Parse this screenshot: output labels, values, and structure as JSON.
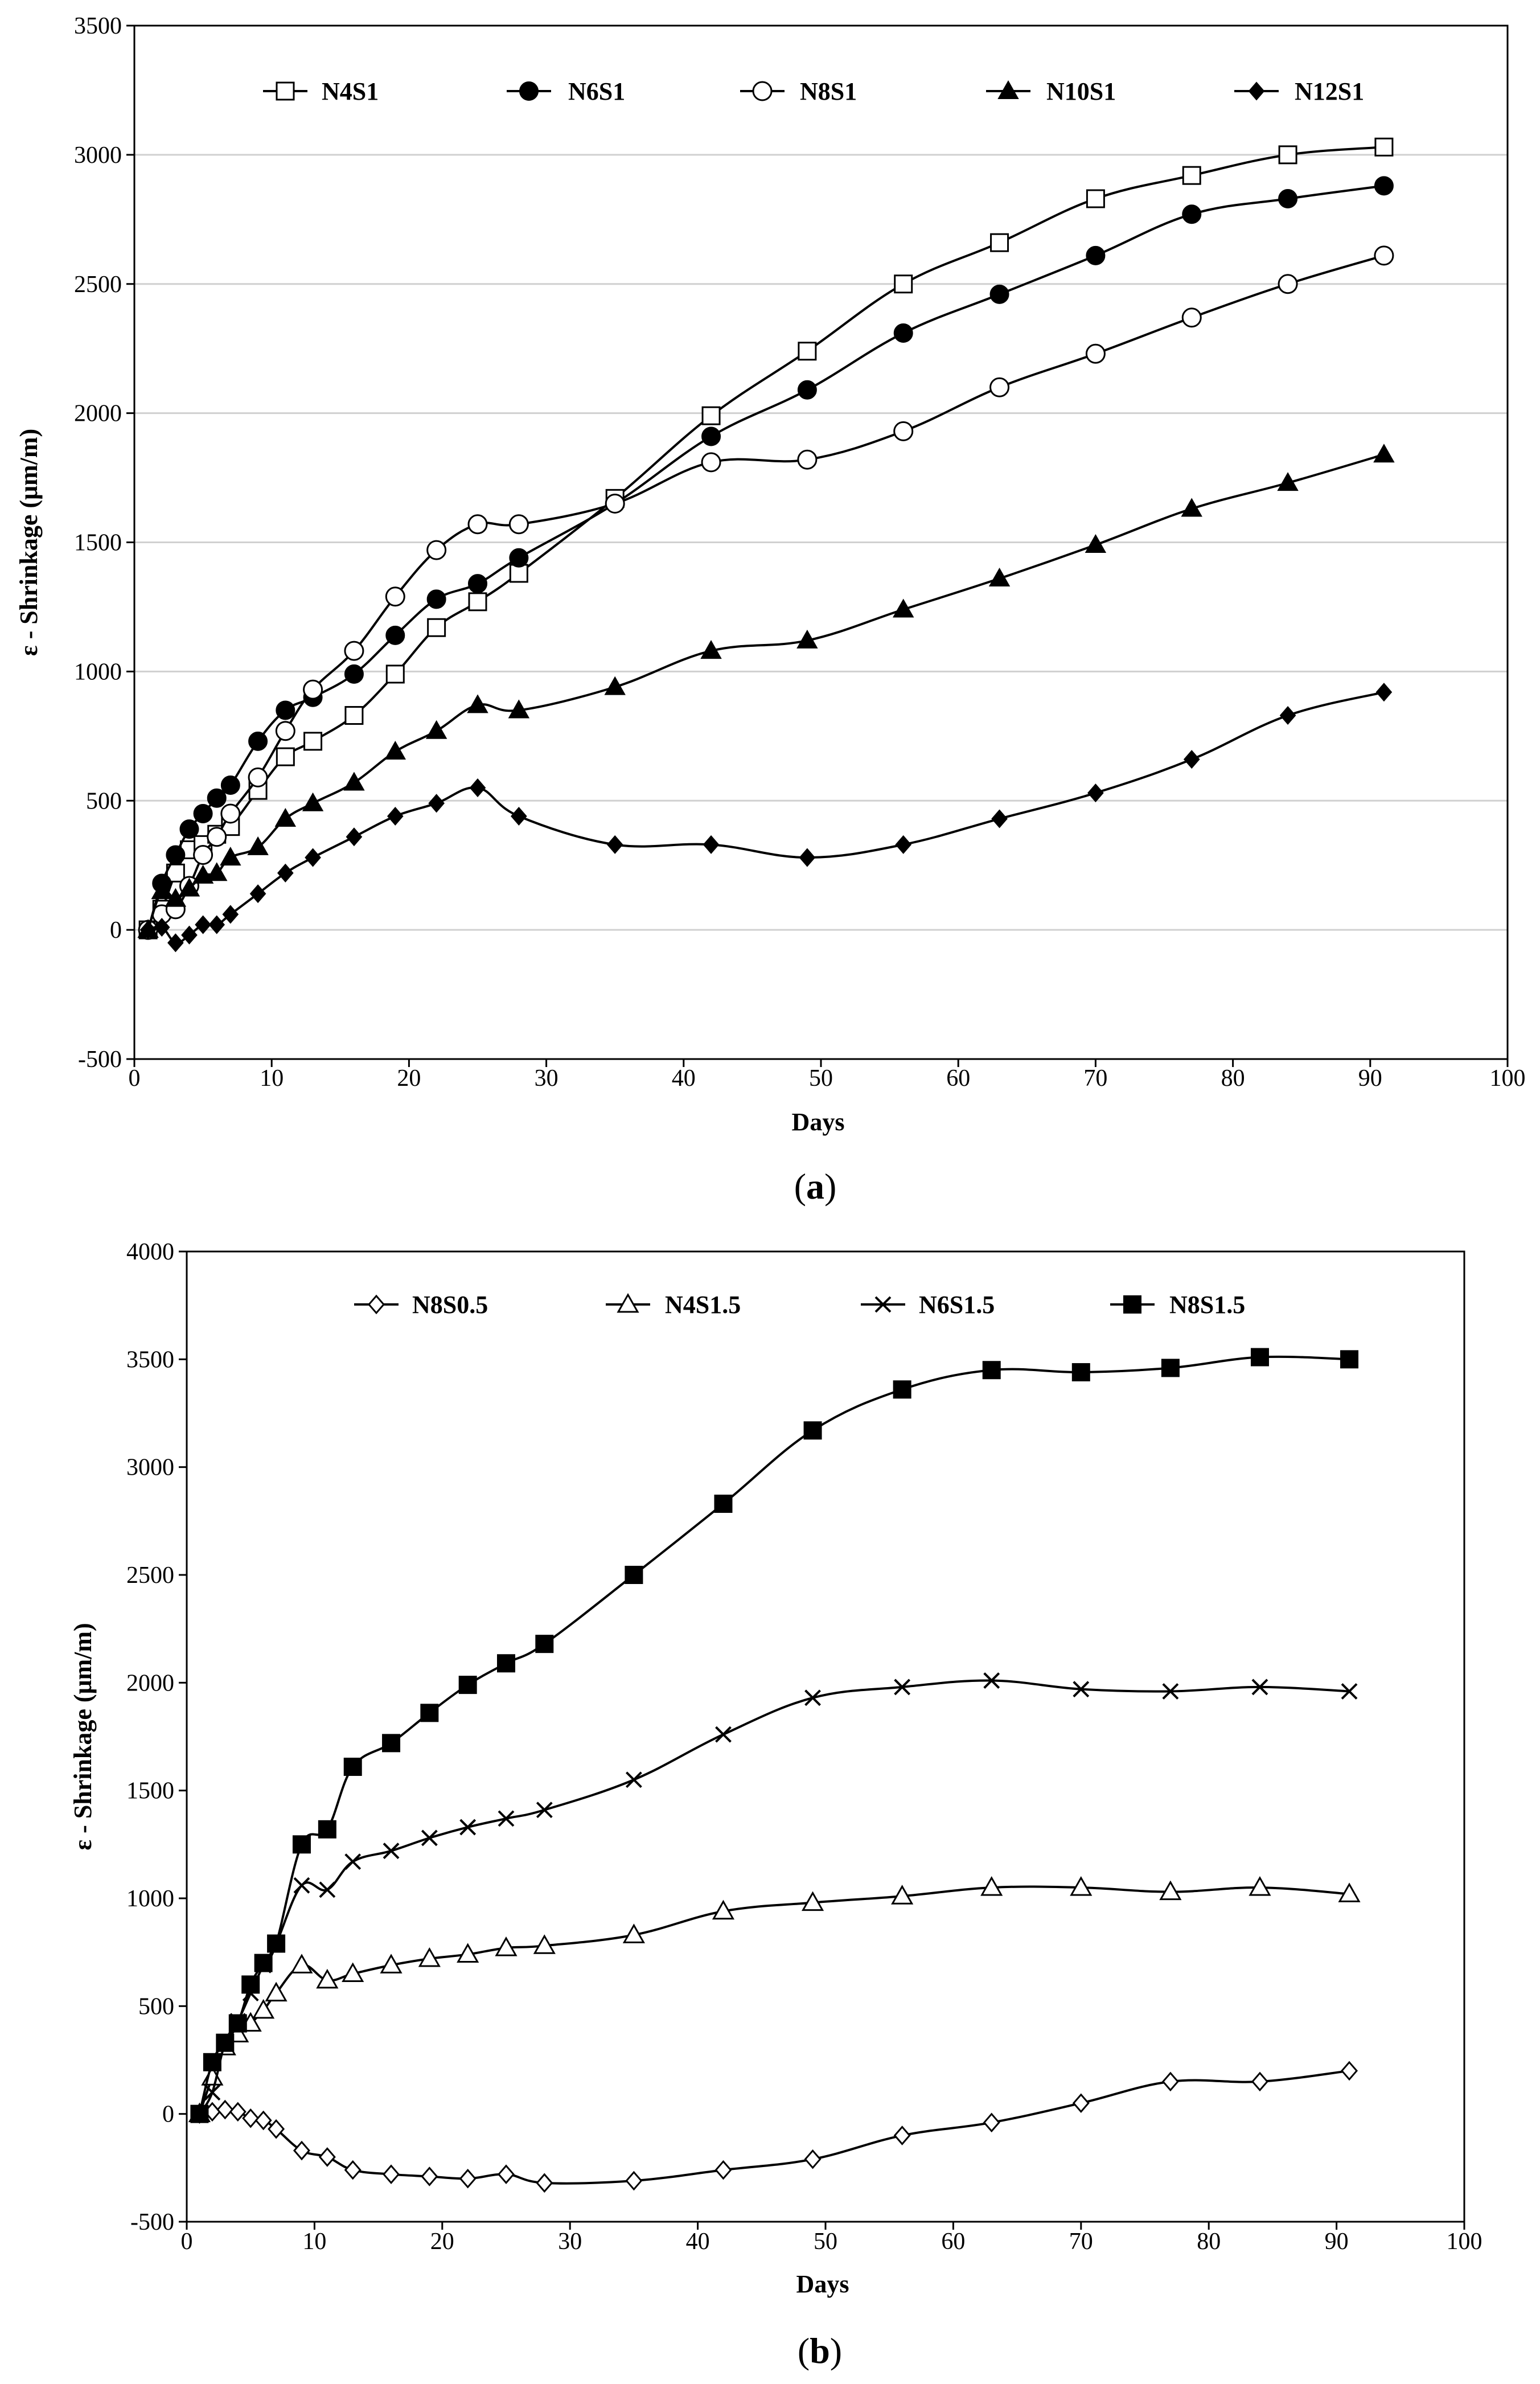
{
  "chart_data": [
    {
      "type": "line",
      "panel_label": "(a)",
      "panel_letter": "a",
      "xlabel": "Days",
      "ylabel": "ε - Shrinkage (μm/m)",
      "xlim": [
        0,
        100
      ],
      "ylim": [
        -500,
        3500
      ],
      "xticks": [
        0,
        10,
        20,
        30,
        40,
        50,
        60,
        70,
        80,
        90,
        100
      ],
      "yticks": [
        -500,
        0,
        500,
        1000,
        1500,
        2000,
        2500,
        3000,
        3500
      ],
      "grid": "horizontal",
      "legend": "top",
      "series": [
        {
          "name": "N4S1",
          "marker": "square-open",
          "x": [
            1,
            2,
            3,
            4,
            5,
            6,
            7,
            9,
            11,
            13,
            16,
            19,
            22,
            25,
            28,
            35,
            42,
            49,
            56,
            63,
            70,
            77,
            84,
            91
          ],
          "y": [
            0,
            80,
            220,
            310,
            330,
            370,
            400,
            540,
            670,
            730,
            830,
            990,
            1170,
            1270,
            1380,
            1670,
            1990,
            2240,
            2500,
            2660,
            2830,
            2920,
            3000,
            3030
          ]
        },
        {
          "name": "N6S1",
          "marker": "circle-filled",
          "x": [
            1,
            2,
            3,
            4,
            5,
            6,
            7,
            9,
            11,
            13,
            16,
            19,
            22,
            25,
            28,
            35,
            42,
            49,
            56,
            63,
            70,
            77,
            84,
            91
          ],
          "y": [
            0,
            180,
            290,
            390,
            450,
            510,
            560,
            730,
            850,
            900,
            990,
            1140,
            1280,
            1340,
            1440,
            1650,
            1910,
            2090,
            2310,
            2460,
            2610,
            2770,
            2830,
            2880
          ]
        },
        {
          "name": "N8S1",
          "marker": "circle-open",
          "x": [
            1,
            2,
            3,
            4,
            5,
            6,
            7,
            9,
            11,
            13,
            16,
            19,
            22,
            25,
            28,
            35,
            42,
            49,
            56,
            63,
            70,
            77,
            84,
            91
          ],
          "y": [
            0,
            60,
            80,
            170,
            290,
            360,
            450,
            590,
            770,
            930,
            1080,
            1290,
            1470,
            1570,
            1570,
            1650,
            1810,
            1820,
            1930,
            2100,
            2230,
            2370,
            2500,
            2610
          ]
        },
        {
          "name": "N10S1",
          "marker": "triangle-filled",
          "x": [
            1,
            2,
            3,
            4,
            5,
            6,
            7,
            9,
            11,
            13,
            16,
            19,
            22,
            25,
            28,
            35,
            42,
            49,
            56,
            63,
            70,
            77,
            84,
            91
          ],
          "y": [
            0,
            150,
            120,
            160,
            210,
            220,
            280,
            320,
            430,
            490,
            570,
            690,
            770,
            870,
            850,
            940,
            1080,
            1120,
            1240,
            1360,
            1490,
            1630,
            1730,
            1840
          ]
        },
        {
          "name": "N12S1",
          "marker": "diamond-filled",
          "x": [
            1,
            2,
            3,
            4,
            5,
            6,
            7,
            9,
            11,
            13,
            16,
            19,
            22,
            25,
            28,
            35,
            42,
            49,
            56,
            63,
            70,
            77,
            84,
            91
          ],
          "y": [
            0,
            10,
            -50,
            -20,
            20,
            20,
            60,
            140,
            220,
            280,
            360,
            440,
            490,
            550,
            440,
            330,
            330,
            280,
            330,
            430,
            530,
            660,
            830,
            920
          ]
        }
      ]
    },
    {
      "type": "line",
      "panel_label": "(b)",
      "panel_letter": "b",
      "xlabel": "Days",
      "ylabel": "ε - Shrinkage (μm/m)",
      "xlim": [
        0,
        100
      ],
      "ylim": [
        -500,
        4000
      ],
      "xticks": [
        0,
        10,
        20,
        30,
        40,
        50,
        60,
        70,
        80,
        90,
        100
      ],
      "yticks": [
        -500,
        0,
        500,
        1000,
        1500,
        2000,
        2500,
        3000,
        3500,
        4000
      ],
      "grid": "none",
      "legend": "top",
      "series": [
        {
          "name": "N8S0.5",
          "marker": "diamond-open",
          "x": [
            1,
            2,
            3,
            4,
            5,
            6,
            7,
            9,
            11,
            13,
            16,
            19,
            22,
            25,
            28,
            35,
            42,
            49,
            56,
            63,
            70,
            77,
            84,
            91
          ],
          "y": [
            0,
            10,
            20,
            10,
            -20,
            -30,
            -70,
            -170,
            -200,
            -260,
            -280,
            -290,
            -300,
            -280,
            -320,
            -310,
            -260,
            -210,
            -100,
            -40,
            50,
            150,
            150,
            200
          ]
        },
        {
          "name": "N4S1.5",
          "marker": "triangle-open",
          "x": [
            1,
            2,
            3,
            4,
            5,
            6,
            7,
            9,
            11,
            13,
            16,
            19,
            22,
            25,
            28,
            35,
            42,
            49,
            56,
            63,
            70,
            77,
            84,
            91
          ],
          "y": [
            0,
            170,
            310,
            370,
            420,
            480,
            560,
            690,
            620,
            650,
            690,
            720,
            740,
            770,
            780,
            830,
            940,
            980,
            1010,
            1050,
            1050,
            1030,
            1050,
            1020
          ]
        },
        {
          "name": "N6S1.5",
          "marker": "cross",
          "x": [
            1,
            2,
            3,
            4,
            5,
            6,
            7,
            9,
            11,
            13,
            16,
            19,
            22,
            25,
            28,
            35,
            42,
            49,
            56,
            63,
            70,
            77,
            84,
            91
          ],
          "y": [
            0,
            100,
            330,
            430,
            560,
            690,
            790,
            1060,
            1040,
            1170,
            1220,
            1280,
            1330,
            1370,
            1410,
            1550,
            1760,
            1930,
            1980,
            2010,
            1970,
            1960,
            1980,
            1960
          ]
        },
        {
          "name": "N8S1.5",
          "marker": "square-filled",
          "x": [
            1,
            2,
            3,
            4,
            5,
            6,
            7,
            9,
            11,
            13,
            16,
            19,
            22,
            25,
            28,
            35,
            42,
            49,
            56,
            63,
            70,
            77,
            84,
            91
          ],
          "y": [
            0,
            240,
            330,
            420,
            600,
            700,
            790,
            1250,
            1320,
            1610,
            1720,
            1860,
            1990,
            2090,
            2180,
            2500,
            2830,
            3170,
            3360,
            3450,
            3440,
            3460,
            3510,
            3500
          ]
        }
      ]
    }
  ]
}
